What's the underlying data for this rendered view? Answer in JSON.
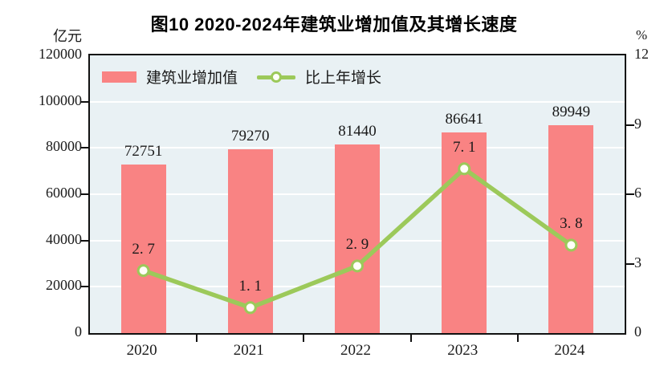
{
  "title": "图10  2020-2024年建筑业增加值及其增长速度",
  "left_axis_unit": "亿元",
  "right_axis_unit": "%",
  "legend": {
    "bar_label": "建筑业增加值",
    "line_label": "比上年增长"
  },
  "colors": {
    "bar": "#F98383",
    "line": "#9CC95A",
    "marker_fill": "#FFFFF8",
    "plot_bg": "#E9F1F4",
    "grid": "#FFFFFF",
    "axis": "#111111",
    "text": "#1A1A1A",
    "title_text": "#000000"
  },
  "chart_data": {
    "type": "bar",
    "subtype": "bar+line dual axis",
    "categories": [
      "2020",
      "2021",
      "2022",
      "2023",
      "2024"
    ],
    "series": [
      {
        "name": "建筑业增加值",
        "type": "bar",
        "axis": "left",
        "values": [
          72751,
          79270,
          81440,
          86641,
          89949
        ],
        "labels": [
          "72751",
          "79270",
          "81440",
          "86641",
          "89949"
        ]
      },
      {
        "name": "比上年增长",
        "type": "line",
        "axis": "right",
        "values": [
          2.7,
          1.1,
          2.9,
          7.1,
          3.8
        ],
        "labels": [
          "2. 7",
          "1. 1",
          "2. 9",
          "7. 1",
          "3. 8"
        ]
      }
    ],
    "left_axis": {
      "label": "亿元",
      "min": 0,
      "max": 120000,
      "ticks": [
        0,
        20000,
        40000,
        60000,
        80000,
        100000,
        120000
      ]
    },
    "right_axis": {
      "label": "%",
      "min": 0,
      "max": 12,
      "ticks": [
        0,
        3,
        6,
        9,
        12
      ]
    },
    "grid": true,
    "legend_position": "top-inside",
    "title": "图10  2020-2024年建筑业增加值及其增长速度"
  }
}
